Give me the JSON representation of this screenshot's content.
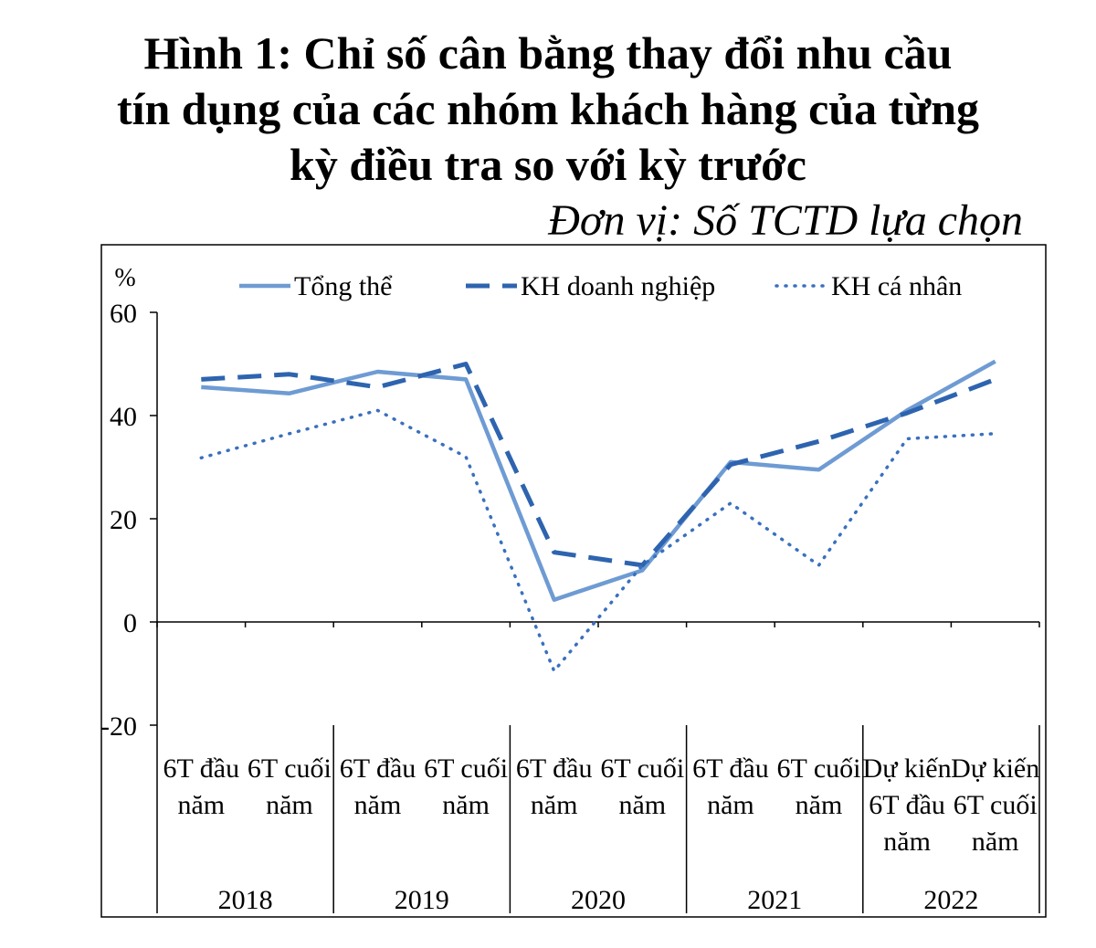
{
  "title_lines": [
    "Hình 1:  Chỉ số cân bằng thay đổi nhu cầu",
    "tín dụng của các nhóm khách hàng của từng",
    "kỳ điều tra so với kỳ trước"
  ],
  "unit": "Đơn vị: Số TCTD lựa chọn",
  "chart_data": {
    "type": "line",
    "ylabel": "%",
    "ylim": [
      -20,
      60
    ],
    "yticks": [
      -20,
      0,
      20,
      40,
      60
    ],
    "grid": false,
    "legend_position": "top",
    "categories": [
      [
        "6T đầu",
        "năm"
      ],
      [
        "6T cuối",
        "năm"
      ],
      [
        "6T đầu",
        "năm"
      ],
      [
        "6T cuối",
        "năm"
      ],
      [
        "6T đầu",
        "năm"
      ],
      [
        "6T cuối",
        "năm"
      ],
      [
        "6T đầu",
        "năm"
      ],
      [
        "6T cuối",
        "năm"
      ],
      [
        "Dự kiến",
        "6T đầu",
        "năm"
      ],
      [
        "Dự kiến",
        "6T cuối",
        "năm"
      ]
    ],
    "groups": [
      "2018",
      "2019",
      "2020",
      "2021",
      "2022"
    ],
    "series": [
      {
        "name": "Tổng thể",
        "style": "solid",
        "color": "#6E9BD3",
        "values": [
          45.5,
          44.3,
          48.5,
          47.0,
          4.3,
          10.0,
          31.0,
          29.5,
          41.0,
          50.5
        ]
      },
      {
        "name": "KH doanh nghiệp",
        "style": "dashed",
        "color": "#2E64AF",
        "values": [
          47.0,
          48.0,
          45.5,
          50.0,
          13.5,
          11.0,
          30.5,
          35.0,
          40.5,
          47.0
        ]
      },
      {
        "name": "KH cá nhân",
        "style": "dotted",
        "color": "#3A70BE",
        "values": [
          31.8,
          36.5,
          41.0,
          32.0,
          -9.5,
          11.0,
          23.0,
          11.0,
          35.5,
          36.5
        ]
      }
    ]
  }
}
